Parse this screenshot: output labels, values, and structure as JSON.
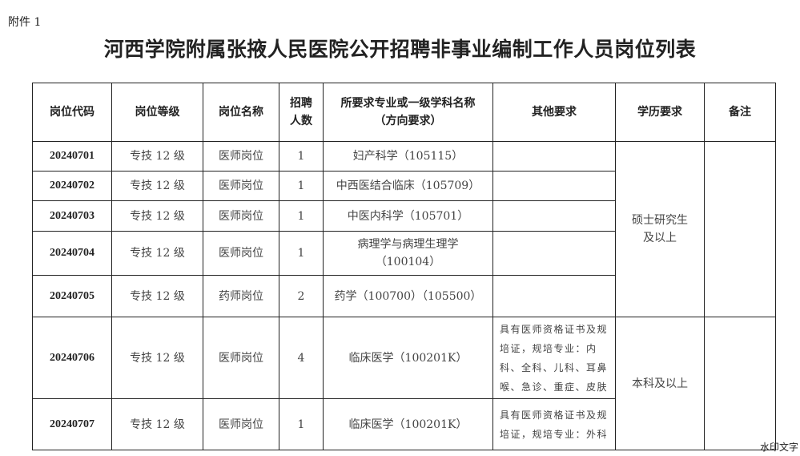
{
  "attachment_label": "附件 1",
  "title": "河西学院附属张掖人民医院公开招聘非事业编制工作人员岗位列表",
  "table": {
    "headers": [
      "岗位代码",
      "岗位等级",
      "岗位名称",
      "招聘人数",
      "所要求专业或一级学科名称（方向要求）",
      "其他要求",
      "学历要求",
      "备注"
    ],
    "header_lines": {
      "count_1": "招聘",
      "count_2": "人数",
      "major_1": "所要求专业或一级学科名称",
      "major_2": "（方向要求）"
    },
    "rows": [
      {
        "code": "20240701",
        "level": "专技 12 级",
        "name": "医师岗位",
        "count": "1",
        "major": "妇产科学（105115）",
        "other": ""
      },
      {
        "code": "20240702",
        "level": "专技 12 级",
        "name": "医师岗位",
        "count": "1",
        "major": "中西医结合临床（105709）",
        "other": ""
      },
      {
        "code": "20240703",
        "level": "专技 12 级",
        "name": "医师岗位",
        "count": "1",
        "major": "中医内科学（105701）",
        "other": ""
      },
      {
        "code": "20240704",
        "level": "专技 12 级",
        "name": "医师岗位",
        "count": "1",
        "major": "病理学与病理生理学（100104）",
        "other": ""
      },
      {
        "code": "20240705",
        "level": "专技 12 级",
        "name": "药师岗位",
        "count": "2",
        "major": "药学（100700）（105500）",
        "other": ""
      },
      {
        "code": "20240706",
        "level": "专技 12 级",
        "name": "医师岗位",
        "count": "4",
        "major": "临床医学（100201K）",
        "other": "具有医师资格证书及规培证，规培专业：内科、全科、儿科、耳鼻喉、急诊、重症、皮肤"
      },
      {
        "code": "20240707",
        "level": "专技 12 级",
        "name": "医师岗位",
        "count": "1",
        "major": "临床医学（100201K）",
        "other": "具有医师资格证书及规培证，规培专业：外科"
      }
    ],
    "major_row4_lines": [
      "病理学与病理生理学",
      "（100104）"
    ],
    "education_groups": [
      "硕士研究生及以上",
      "本科及以上"
    ],
    "notes": [
      "",
      ""
    ]
  },
  "watermark": "水印文字"
}
